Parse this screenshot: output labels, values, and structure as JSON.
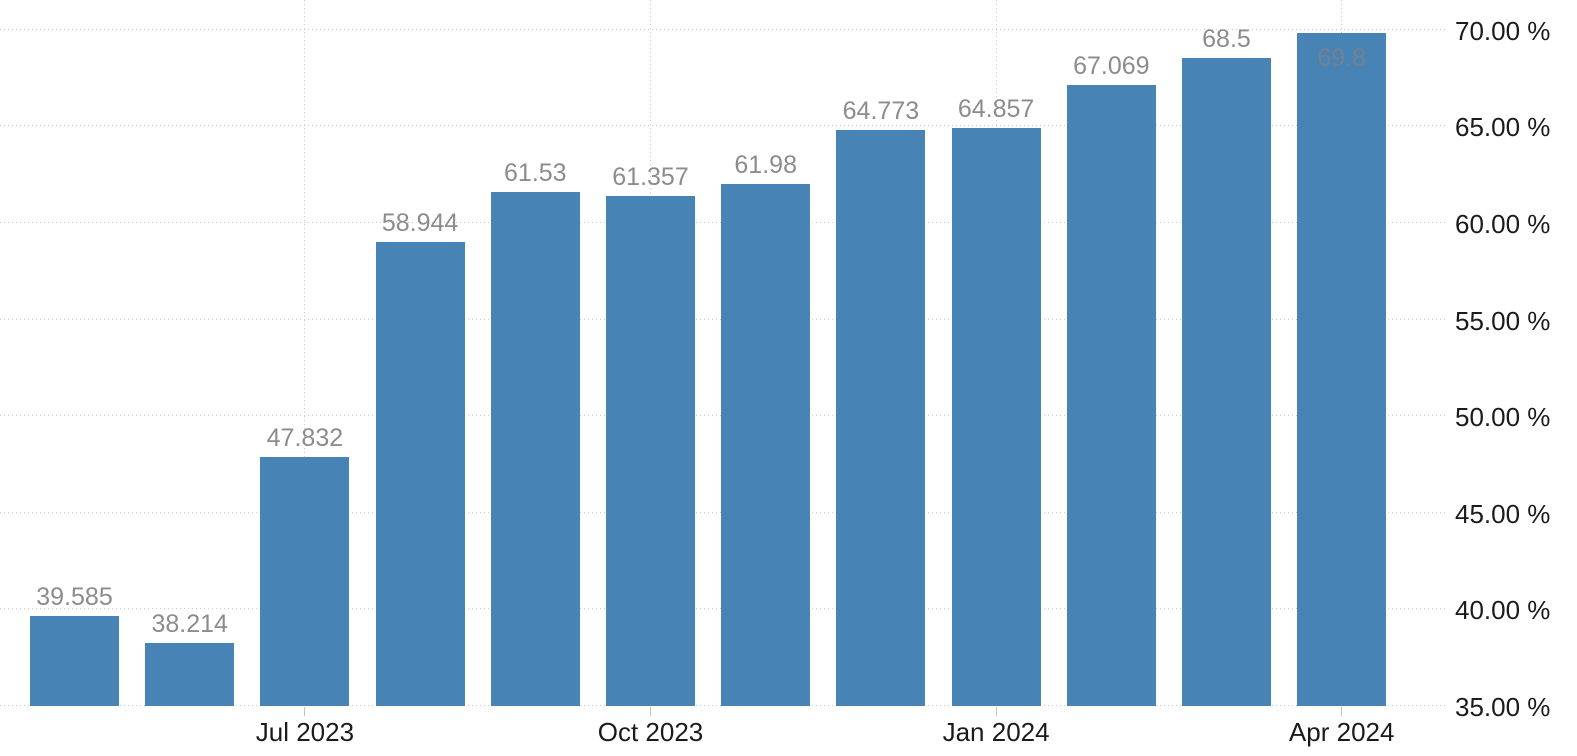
{
  "chart_data": {
    "type": "bar",
    "title": "",
    "values": [
      39.585,
      38.214,
      47.832,
      58.944,
      61.53,
      61.357,
      61.98,
      64.773,
      64.857,
      67.069,
      68.5,
      69.8
    ],
    "bar_labels": [
      "39.585",
      "38.214",
      "47.832",
      "58.944",
      "61.53",
      "61.357",
      "61.98",
      "64.773",
      "64.857",
      "67.069",
      "68.5",
      "69.8"
    ],
    "x_ticks": [
      {
        "label": "Jul 2023",
        "bar_index": 2
      },
      {
        "label": "Oct 2023",
        "bar_index": 5
      },
      {
        "label": "Jan 2024",
        "bar_index": 8
      },
      {
        "label": "Apr 2024",
        "bar_index": 11
      }
    ],
    "y_axis": {
      "side": "right",
      "unit": "%",
      "tick_labels": [
        "70.00 %",
        "65.00 %",
        "60.00 %",
        "55.00 %",
        "50.00 %",
        "45.00 %",
        "40.00 %",
        "35.00 %"
      ],
      "tick_values": [
        70,
        65,
        60,
        55,
        50,
        45,
        40,
        35
      ],
      "min": 35,
      "max": 71.5
    },
    "grid": {
      "style": "dotted",
      "horizontal": true,
      "vertical_at_x_ticks": true
    },
    "legend": "none",
    "colors": {
      "bar": "#4783b4",
      "value_label": "#8c8c8c",
      "value_label_inside": "#73808d",
      "axis_label": "#1b1b1b",
      "gridline": "#c9c9c9",
      "tick_mark": "#c2c2c2",
      "background": "#ffffff"
    }
  }
}
